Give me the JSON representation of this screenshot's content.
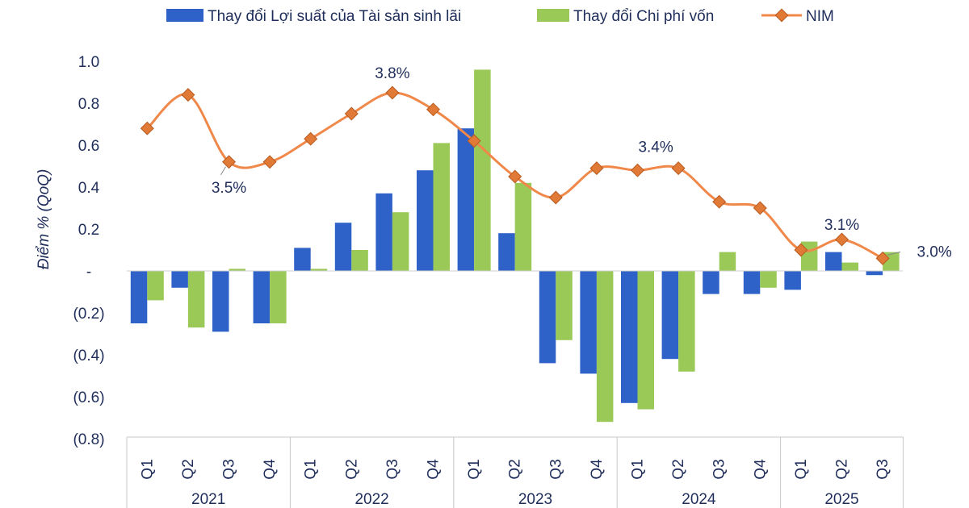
{
  "chart_data": {
    "type": "bar",
    "title": "",
    "xlabel": "",
    "ylabel": "Điểm % (QoQ)",
    "ylim": [
      -0.8,
      1.0
    ],
    "y_ticks": [
      1.0,
      0.8,
      0.6,
      0.4,
      0.2,
      0,
      -0.2,
      -0.4,
      -0.6,
      -0.8
    ],
    "y_tick_labels": [
      "1.0",
      "0.8",
      "0.6",
      "0.4",
      "0.2",
      "-",
      "(0.2)",
      "(0.4)",
      "(0.6)",
      "(0.8)"
    ],
    "categories": [
      "Q1",
      "Q2",
      "Q3",
      "Q4",
      "Q1",
      "Q2",
      "Q3",
      "Q4",
      "Q1",
      "Q2",
      "Q3",
      "Q4",
      "Q1",
      "Q2",
      "Q3",
      "Q4",
      "Q1",
      "Q2",
      "Q3"
    ],
    "groups": [
      {
        "label": "2021",
        "count": 4
      },
      {
        "label": "2022",
        "count": 4
      },
      {
        "label": "2023",
        "count": 4
      },
      {
        "label": "2024",
        "count": 4
      },
      {
        "label": "2025",
        "count": 3
      }
    ],
    "series": [
      {
        "name": "Thay đổi Lợi suất của Tài sản sinh lãi",
        "type": "bar",
        "color": "#2e62c8",
        "values": [
          -0.25,
          -0.08,
          -0.29,
          -0.25,
          0.11,
          0.23,
          0.37,
          0.48,
          0.68,
          0.18,
          -0.44,
          -0.49,
          -0.63,
          -0.42,
          -0.11,
          -0.11,
          -0.09,
          0.09,
          -0.02
        ]
      },
      {
        "name": "Thay đổi Chi phí vốn",
        "type": "bar",
        "color": "#9bc957",
        "values": [
          -0.14,
          -0.27,
          0.01,
          -0.25,
          0.01,
          0.1,
          0.28,
          0.61,
          0.96,
          0.42,
          -0.33,
          -0.72,
          -0.66,
          -0.48,
          0.09,
          -0.08,
          0.14,
          0.04,
          0.09
        ]
      },
      {
        "name": "NIM",
        "type": "line",
        "color": "#f0884a",
        "marker_color": "#e07a36",
        "plot_values": [
          0.68,
          0.84,
          0.52,
          0.52,
          0.63,
          0.75,
          0.85,
          0.77,
          0.62,
          0.45,
          0.35,
          0.49,
          0.48,
          0.49,
          0.33,
          0.3,
          0.1,
          0.15,
          0.06
        ]
      }
    ],
    "annotations": [
      {
        "text": "3.5%",
        "index": 2
      },
      {
        "text": "3.8%",
        "index": 6
      },
      {
        "text": "3.4%",
        "index": 13
      },
      {
        "text": "3.1%",
        "index": 17
      },
      {
        "text": "3.0%",
        "index": 18
      }
    ],
    "legend": "top-center"
  }
}
